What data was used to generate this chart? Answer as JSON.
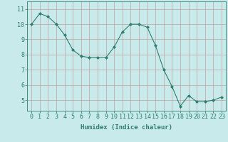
{
  "x": [
    0,
    1,
    2,
    3,
    4,
    5,
    6,
    7,
    8,
    9,
    10,
    11,
    12,
    13,
    14,
    15,
    16,
    17,
    18,
    19,
    20,
    21,
    22,
    23
  ],
  "y": [
    10.0,
    10.7,
    10.5,
    10.0,
    9.3,
    8.3,
    7.9,
    7.8,
    7.8,
    7.8,
    8.5,
    9.5,
    10.0,
    10.0,
    9.8,
    8.6,
    7.0,
    5.9,
    4.6,
    5.3,
    4.9,
    4.9,
    5.0,
    5.2
  ],
  "line_color": "#2e7d6e",
  "marker": "D",
  "marker_size": 2,
  "bg_color": "#c8eaea",
  "grid_color": "#c0a0a0",
  "xlabel": "Humidex (Indice chaleur)",
  "xlim": [
    -0.5,
    23.5
  ],
  "ylim": [
    4.3,
    11.5
  ],
  "yticks": [
    5,
    6,
    7,
    8,
    9,
    10,
    11
  ],
  "xticks": [
    0,
    1,
    2,
    3,
    4,
    5,
    6,
    7,
    8,
    9,
    10,
    11,
    12,
    13,
    14,
    15,
    16,
    17,
    18,
    19,
    20,
    21,
    22,
    23
  ],
  "tick_color": "#2e7d6e",
  "label_color": "#2e7d6e",
  "font_size": 6.0,
  "xlabel_fontsize": 6.5
}
